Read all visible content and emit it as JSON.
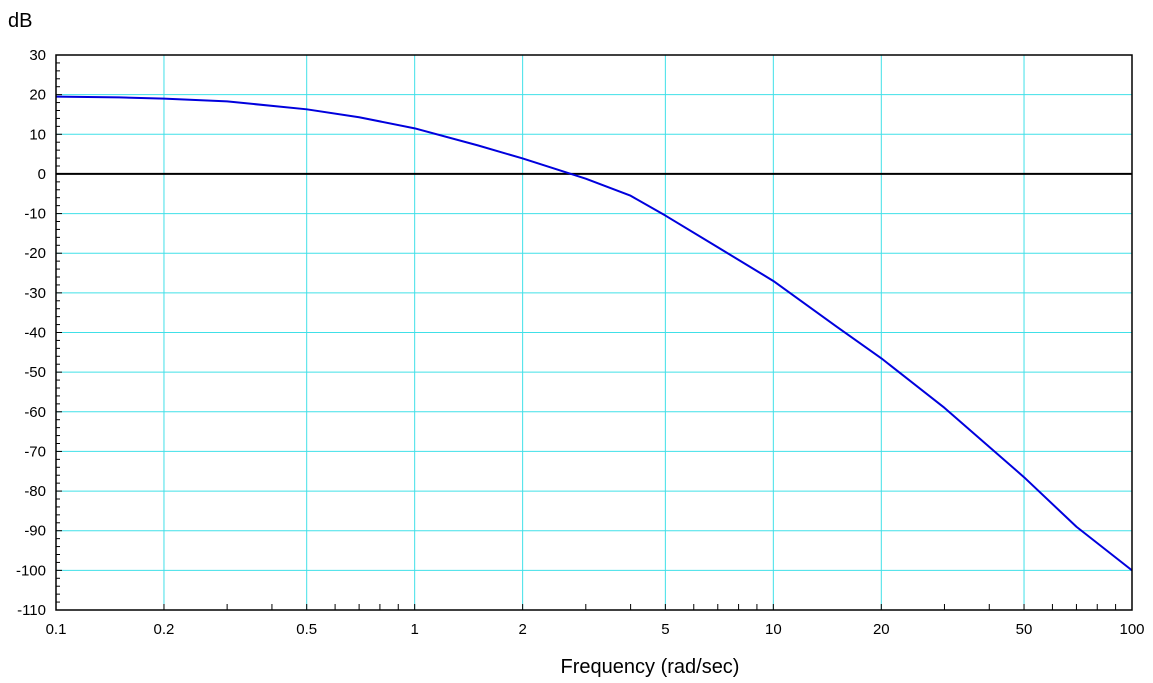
{
  "chart_data": {
    "type": "line",
    "title": "",
    "xlabel": "Frequency (rad/sec)",
    "ylabel": "dB",
    "x_scale": "log",
    "xlim": [
      0.1,
      100
    ],
    "ylim": [
      -110,
      30
    ],
    "grid": true,
    "x_grid_lines": [
      0.2,
      0.5,
      1,
      2,
      5,
      10,
      20,
      50
    ],
    "x_ticks": [
      {
        "value": 0.1,
        "label": "0.1"
      },
      {
        "value": 0.2,
        "label": "0.2"
      },
      {
        "value": 0.5,
        "label": "0.5"
      },
      {
        "value": 1,
        "label": "1"
      },
      {
        "value": 2,
        "label": "2"
      },
      {
        "value": 5,
        "label": "5"
      },
      {
        "value": 10,
        "label": "10"
      },
      {
        "value": 20,
        "label": "20"
      },
      {
        "value": 50,
        "label": "50"
      },
      {
        "value": 100,
        "label": "100"
      }
    ],
    "y_ticks": [
      {
        "value": 30,
        "label": "30"
      },
      {
        "value": 20,
        "label": "20"
      },
      {
        "value": 10,
        "label": "10"
      },
      {
        "value": 0,
        "label": "0"
      },
      {
        "value": -10,
        "label": "-10"
      },
      {
        "value": -20,
        "label": "-20"
      },
      {
        "value": -30,
        "label": "-30"
      },
      {
        "value": -40,
        "label": "-40"
      },
      {
        "value": -50,
        "label": "-50"
      },
      {
        "value": -60,
        "label": "-60"
      },
      {
        "value": -70,
        "label": "-70"
      },
      {
        "value": -80,
        "label": "-80"
      },
      {
        "value": -90,
        "label": "-90"
      },
      {
        "value": -100,
        "label": "-100"
      },
      {
        "value": -110,
        "label": "-110"
      }
    ],
    "zero_line": 0,
    "series": [
      {
        "color": "#0000dd",
        "x": [
          0.1,
          0.15,
          0.2,
          0.3,
          0.5,
          0.7,
          1,
          1.5,
          2,
          2.5,
          3,
          4,
          5,
          7,
          10,
          15,
          20,
          30,
          50,
          70,
          100
        ],
        "y": [
          19.5,
          19.3,
          19.0,
          18.3,
          16.3,
          14.3,
          11.5,
          7.2,
          3.9,
          1.1,
          -1.2,
          -5.5,
          -10.5,
          -18.5,
          -27,
          -38.5,
          -46.5,
          -59,
          -76.5,
          -89,
          -100
        ]
      }
    ],
    "colors": {
      "grid": "#40e0e8",
      "axis": "#000000",
      "zero_line": "#000000",
      "curve": "#0000dd"
    }
  }
}
